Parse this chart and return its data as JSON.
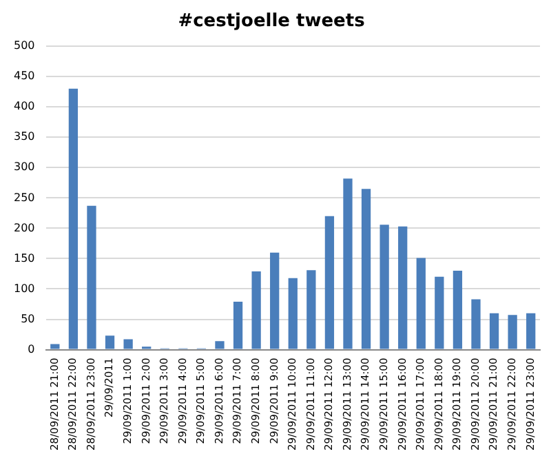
{
  "chart_data": {
    "type": "bar",
    "title": "#cestjoelle tweets",
    "categories": [
      "28/09/2011 21:00",
      "28/09/2011 22:00",
      "28/09/2011 23:00",
      "29/09/2011",
      "29/09/2011 1:00",
      "29/09/2011 2:00",
      "29/09/2011 3:00",
      "29/09/2011 4:00",
      "29/09/2011 5:00",
      "29/09/2011 6:00",
      "29/09/2011 7:00",
      "29/09/2011 8:00",
      "29/09/2011 9:00",
      "29/09/2011 10:00",
      "29/09/2011 11:00",
      "29/09/2011 12:00",
      "29/09/2011 13:00",
      "29/09/2011 14:00",
      "29/09/2011 15:00",
      "29/09/2011 16:00",
      "29/09/2011 17:00",
      "29/09/2011 18:00",
      "29/09/2011 19:00",
      "29/09/2011 20:00",
      "29/09/2011 21:00",
      "29/09/2011 22:00",
      "29/09/2011 23:00"
    ],
    "values": [
      9,
      430,
      237,
      23,
      17,
      5,
      2,
      2,
      2,
      14,
      79,
      129,
      160,
      118,
      131,
      220,
      282,
      265,
      206,
      203,
      151,
      120,
      130,
      83,
      60,
      57,
      60
    ],
    "color": "#4a7ebb",
    "ylim": [
      0,
      500
    ],
    "yticks": [
      0,
      50,
      100,
      150,
      200,
      250,
      300,
      350,
      400,
      450,
      500
    ],
    "grid": "y"
  }
}
